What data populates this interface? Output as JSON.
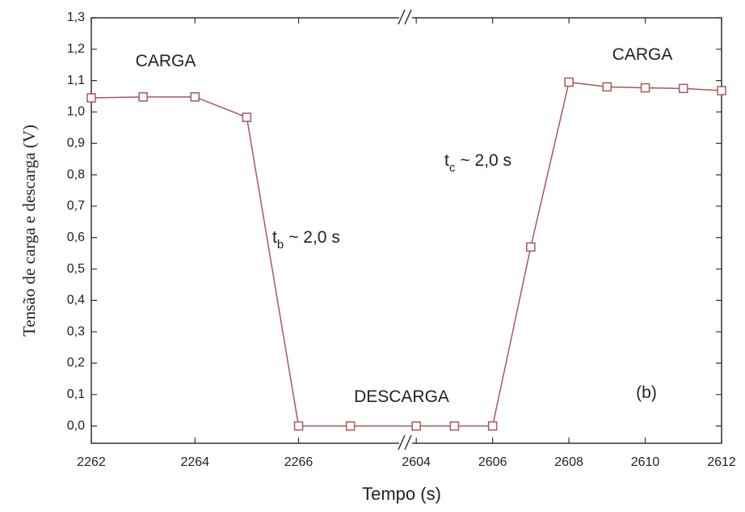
{
  "chart_data": {
    "type": "line",
    "x_label": "Tempo (s)",
    "y_label": "Tensão de carga e descarga (V)",
    "x_segments": [
      {
        "xlim": [
          2262,
          2268.05
        ],
        "xticks": [
          2262,
          2264,
          2266
        ]
      },
      {
        "xlim": [
          2603.7,
          2612
        ],
        "xticks": [
          2604,
          2606,
          2608,
          2610,
          2612
        ]
      }
    ],
    "ylim": [
      -0.055,
      1.3
    ],
    "yticks": [
      {
        "value": 0,
        "label": "0,0"
      },
      {
        "value": 0.1,
        "label": "0,1"
      },
      {
        "value": 0.2,
        "label": "0,2"
      },
      {
        "value": 0.3,
        "label": "0,3"
      },
      {
        "value": 0.4,
        "label": "0,4"
      },
      {
        "value": 0.5,
        "label": "0,5"
      },
      {
        "value": 0.6,
        "label": "0,6"
      },
      {
        "value": 0.7,
        "label": "0,7"
      },
      {
        "value": 0.8,
        "label": "0,8"
      },
      {
        "value": 0.9,
        "label": "0,9"
      },
      {
        "value": 1.0,
        "label": "1,0"
      },
      {
        "value": 1.1,
        "label": "1,1"
      },
      {
        "value": 1.2,
        "label": "1,2"
      },
      {
        "value": 1.3,
        "label": "1,3"
      }
    ],
    "series": [
      {
        "color": "#a8585a",
        "x": [
          2262,
          2263,
          2264,
          2265,
          2266,
          2267,
          2604,
          2605,
          2606,
          2607,
          2608,
          2609,
          2610,
          2611,
          2612
        ],
        "values": [
          1.045,
          1.048,
          1.048,
          0.983,
          0.0,
          0.0,
          0.0,
          0.0,
          0.0,
          0.57,
          1.095,
          1.08,
          1.077,
          1.075,
          1.068
        ]
      }
    ],
    "annotations": [
      {
        "text": "CARGA"
      },
      {
        "text": "CARGA"
      },
      {
        "text": "DESCARGA"
      },
      {
        "text": "(b)"
      },
      {
        "text": "t",
        "sub": "b",
        "rest": "~ 2,0 s"
      },
      {
        "text": "t",
        "sub": "c",
        "rest": "~ 2,0 s"
      }
    ]
  }
}
